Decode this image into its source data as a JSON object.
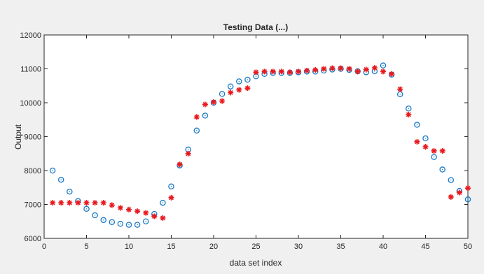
{
  "chart_data": {
    "type": "scatter",
    "title": "Testing Data (...)",
    "xlabel": "data set index",
    "ylabel": "Output",
    "xlim": [
      0,
      50
    ],
    "ylim": [
      6000,
      12000
    ],
    "xticks": [
      0,
      5,
      10,
      15,
      20,
      25,
      30,
      35,
      40,
      45,
      50
    ],
    "yticks": [
      6000,
      7000,
      8000,
      9000,
      10000,
      11000,
      12000
    ],
    "grid": false,
    "colors": {
      "background": "#f0f0f0",
      "plot_area": "#ffffff",
      "axis": "#262626",
      "circle_series": "#1a7ac8",
      "star_series": "#e8191e"
    },
    "series": [
      {
        "marker": "circle",
        "color": "#1a7ac8",
        "x": [
          1,
          2,
          3,
          4,
          5,
          6,
          7,
          8,
          9,
          10,
          11,
          12,
          13,
          14,
          15,
          16,
          17,
          18,
          19,
          20,
          21,
          22,
          23,
          24,
          25,
          26,
          27,
          28,
          29,
          30,
          31,
          32,
          33,
          34,
          35,
          36,
          37,
          38,
          39,
          40,
          41,
          42,
          43,
          44,
          45,
          46,
          47,
          48,
          49,
          50
        ],
        "y": [
          8000,
          7730,
          7380,
          7100,
          6870,
          6680,
          6540,
          6480,
          6430,
          6400,
          6400,
          6500,
          6720,
          7050,
          7530,
          8150,
          8620,
          9180,
          9620,
          10000,
          10260,
          10480,
          10630,
          10680,
          10780,
          10850,
          10880,
          10880,
          10880,
          10900,
          10920,
          10920,
          10950,
          10980,
          11000,
          10970,
          10930,
          10900,
          10930,
          11100,
          10830,
          10250,
          9830,
          9350,
          8950,
          8400,
          8030,
          7720,
          7400,
          7150
        ]
      },
      {
        "marker": "star",
        "color": "#e8191e",
        "x": [
          1,
          2,
          3,
          4,
          5,
          6,
          7,
          8,
          9,
          10,
          11,
          12,
          13,
          14,
          15,
          16,
          17,
          18,
          19,
          20,
          21,
          22,
          23,
          24,
          25,
          26,
          27,
          28,
          29,
          30,
          31,
          32,
          33,
          34,
          35,
          36,
          37,
          38,
          39,
          40,
          41,
          42,
          43,
          44,
          45,
          46,
          47,
          48,
          49,
          50
        ],
        "y": [
          7050,
          7050,
          7050,
          7050,
          7050,
          7050,
          7050,
          6980,
          6900,
          6850,
          6800,
          6750,
          6650,
          6600,
          7200,
          8180,
          8500,
          9580,
          9950,
          10020,
          10050,
          10300,
          10380,
          10430,
          10900,
          10920,
          10920,
          10920,
          10900,
          10920,
          10950,
          10970,
          11000,
          11020,
          11020,
          11000,
          10920,
          10980,
          11030,
          10920,
          10850,
          10400,
          9650,
          8850,
          8700,
          8580,
          8580,
          7220,
          7350,
          7480
        ]
      }
    ]
  }
}
